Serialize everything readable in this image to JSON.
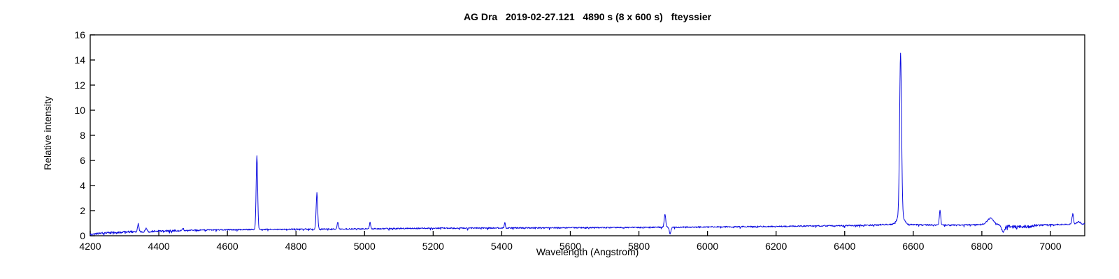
{
  "chart_data": {
    "type": "line",
    "title": "AG Dra   2019-02-27.121   4890 s (8 x 600 s)   fteyssier",
    "xlabel": "Wavelength (Angstrom)",
    "ylabel": "Relative intensity",
    "xlim": [
      4200,
      7100
    ],
    "ylim": [
      0,
      16
    ],
    "xticks": [
      4200,
      4400,
      4600,
      4800,
      5000,
      5200,
      5400,
      5600,
      5800,
      6000,
      6200,
      6400,
      6600,
      6800,
      7000
    ],
    "yticks": [
      0,
      2,
      4,
      6,
      8,
      10,
      12,
      14,
      16
    ],
    "grid": false,
    "legend": null,
    "line_color": "#0b0bdf",
    "axis_color": "#000000",
    "background_color": "#ffffff",
    "continuum": [
      [
        4200,
        0.12
      ],
      [
        4240,
        0.22
      ],
      [
        4300,
        0.3
      ],
      [
        4400,
        0.36
      ],
      [
        4500,
        0.44
      ],
      [
        4600,
        0.48
      ],
      [
        4700,
        0.5
      ],
      [
        4800,
        0.52
      ],
      [
        4900,
        0.54
      ],
      [
        5000,
        0.55
      ],
      [
        5200,
        0.6
      ],
      [
        5400,
        0.62
      ],
      [
        5600,
        0.64
      ],
      [
        5800,
        0.66
      ],
      [
        6000,
        0.7
      ],
      [
        6200,
        0.74
      ],
      [
        6300,
        0.78
      ],
      [
        6400,
        0.8
      ],
      [
        6480,
        0.85
      ],
      [
        6520,
        0.9
      ],
      [
        6600,
        0.88
      ],
      [
        6700,
        0.85
      ],
      [
        6780,
        0.88
      ],
      [
        6820,
        0.9
      ],
      [
        6850,
        0.88
      ],
      [
        6868,
        0.75
      ],
      [
        6880,
        0.72
      ],
      [
        6930,
        0.74
      ],
      [
        6950,
        0.78
      ],
      [
        6965,
        0.85
      ],
      [
        7000,
        0.88
      ],
      [
        7040,
        0.9
      ],
      [
        7100,
        0.95
      ]
    ],
    "emission_lines": [
      {
        "wavelength": 4340,
        "amplitude": 0.6,
        "sigma": 2.0
      },
      {
        "wavelength": 4363,
        "amplitude": 0.28,
        "sigma": 1.8
      },
      {
        "wavelength": 4471,
        "amplitude": 0.15,
        "sigma": 2.0
      },
      {
        "wavelength": 4686,
        "amplitude": 5.85,
        "sigma": 2.2
      },
      {
        "wavelength": 4861,
        "amplitude": 2.88,
        "sigma": 2.2
      },
      {
        "wavelength": 4922,
        "amplitude": 0.55,
        "sigma": 1.8
      },
      {
        "wavelength": 5016,
        "amplitude": 0.5,
        "sigma": 1.8
      },
      {
        "wavelength": 5409,
        "amplitude": 0.45,
        "sigma": 1.5
      },
      {
        "wavelength": 5876,
        "amplitude": 1.0,
        "sigma": 2.2
      },
      {
        "wavelength": 6563,
        "amplitude": 12.8,
        "sigma": 2.8
      },
      {
        "wavelength": 6563,
        "amplitude": 0.85,
        "sigma": 9.0
      },
      {
        "wavelength": 6678,
        "amplitude": 1.15,
        "sigma": 2.0
      },
      {
        "wavelength": 6825,
        "amplitude": 0.5,
        "sigma": 9.0
      },
      {
        "wavelength": 7065,
        "amplitude": 0.85,
        "sigma": 2.2
      },
      {
        "wavelength": 7082,
        "amplitude": 0.18,
        "sigma": 5.0
      }
    ],
    "absorption_features": [
      {
        "center": 5891,
        "depth": 0.5,
        "sigma": 2.5
      },
      {
        "center": 6862,
        "depth": 0.48,
        "sigma": 4.0
      }
    ],
    "noise": {
      "amplitude": 0.05,
      "spike_probability": 0.08,
      "spike_scale": 2.5,
      "extra_regions": [
        {
          "from": 4200,
          "to": 4450,
          "extra_amplitude": 0.03
        },
        {
          "from": 6868,
          "to": 6958,
          "extra_amplitude": 0.07
        }
      ]
    },
    "sample_step_angstrom": 1
  }
}
